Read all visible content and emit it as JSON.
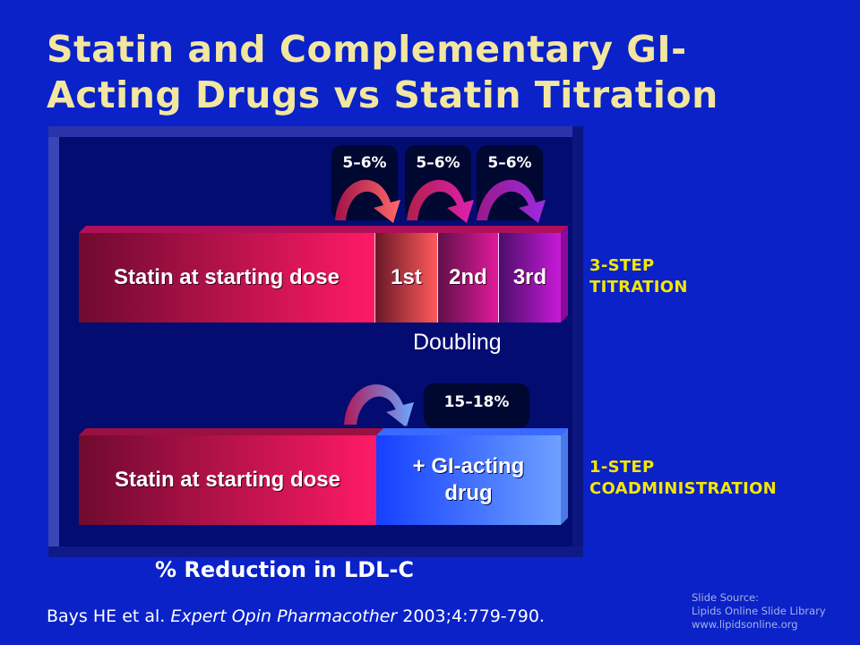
{
  "title": {
    "line1": "Statin and Complementary GI-",
    "line2": "Acting Drugs vs Statin Titration"
  },
  "titration": {
    "base_label": "Statin at starting dose",
    "steps": [
      "1st",
      "2nd",
      "3rd"
    ],
    "step_increments": [
      "5–6%",
      "5–6%",
      "5–6%"
    ],
    "sublabel": "Doubling",
    "right_label_line1": "3-STEP",
    "right_label_line2": "TITRATION"
  },
  "coadministration": {
    "base_label": "Statin at starting dose",
    "addon_label_line1": "+ GI-acting",
    "addon_label_line2": "drug",
    "increment": "15–18%",
    "right_label_line1": "1-STEP",
    "right_label_line2": "COADMINISTRATION"
  },
  "x_axis_label": "% Reduction in LDL-C",
  "citation": {
    "authors": "Bays HE et al.",
    "journal": "Expert Opin Pharmacother",
    "ref": "2003;4:779-790."
  },
  "source": {
    "line1": "Slide Source:",
    "line2": "Lipids Online Slide Library",
    "line3": "www.lipidsonline.org"
  },
  "colors": {
    "background": "#0a22c8",
    "title": "#f2e6a0",
    "right_labels": "#f5e600"
  }
}
